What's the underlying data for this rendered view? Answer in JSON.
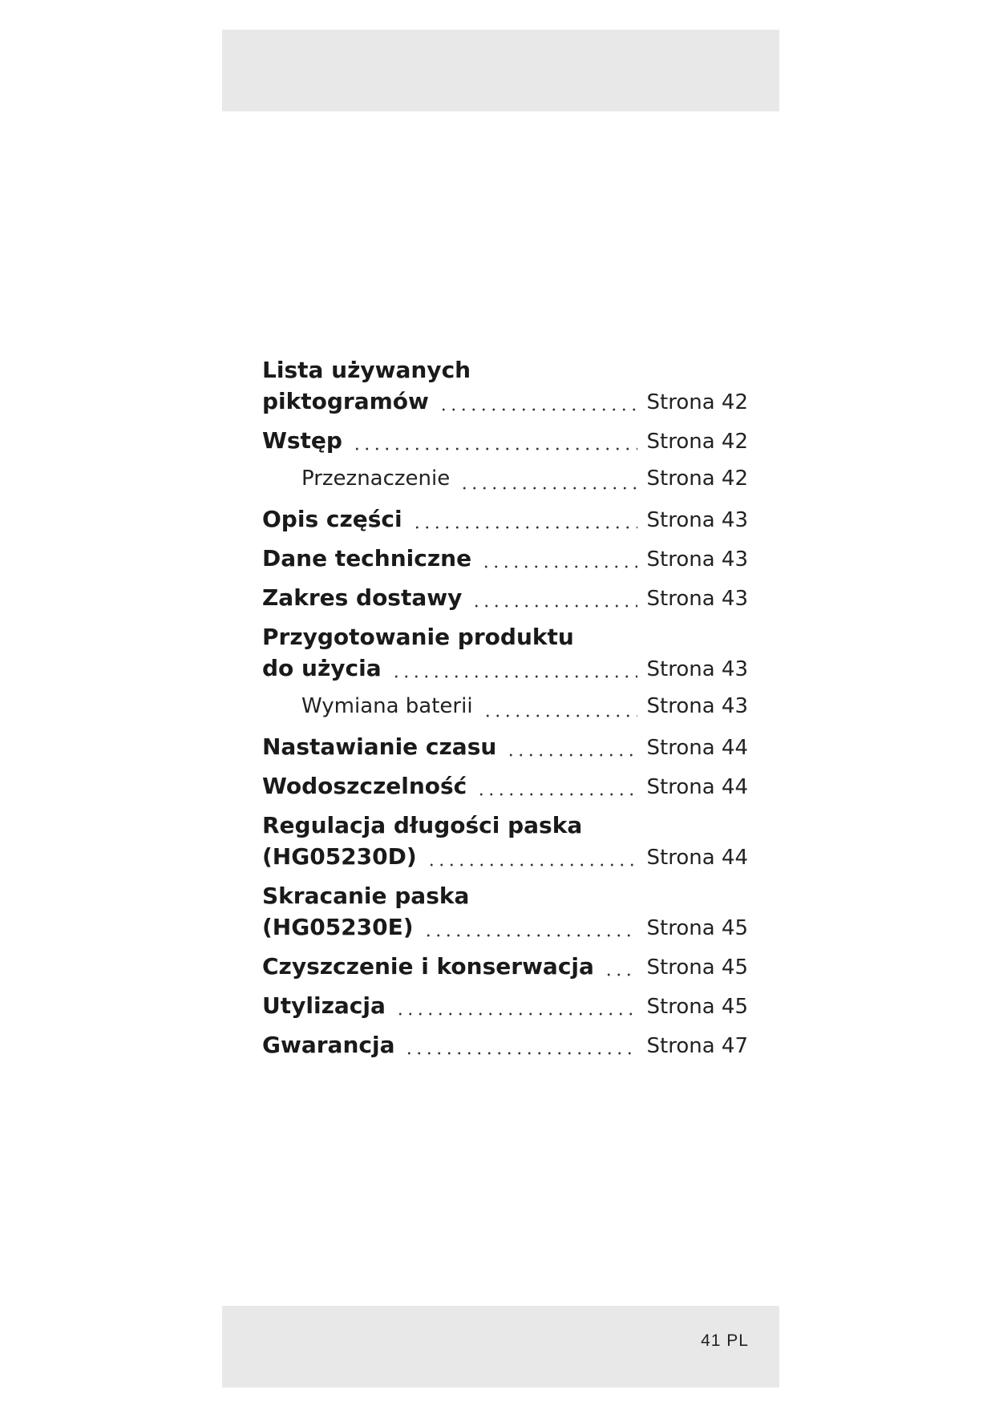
{
  "toc": [
    {
      "lines": [
        "Lista używanych",
        "piktogramów"
      ],
      "page": "Strona 42",
      "level": 1
    },
    {
      "lines": [
        "Wstęp"
      ],
      "page": "Strona 42",
      "level": 1
    },
    {
      "lines": [
        "Przeznaczenie"
      ],
      "page": "Strona 42",
      "level": 2
    },
    {
      "lines": [
        "Opis części"
      ],
      "page": "Strona 43",
      "level": 1
    },
    {
      "lines": [
        "Dane techniczne"
      ],
      "page": "Strona 43",
      "level": 1
    },
    {
      "lines": [
        "Zakres dostawy"
      ],
      "page": "Strona 43",
      "level": 1
    },
    {
      "lines": [
        "Przygotowanie produktu",
        "do użycia"
      ],
      "page": "Strona 43",
      "level": 1
    },
    {
      "lines": [
        "Wymiana baterii"
      ],
      "page": "Strona 43",
      "level": 2
    },
    {
      "lines": [
        "Nastawianie czasu"
      ],
      "page": "Strona 44",
      "level": 1
    },
    {
      "lines": [
        "Wodoszczelność"
      ],
      "page": "Strona 44",
      "level": 1
    },
    {
      "lines": [
        "Regulacja długości paska",
        "(HG05230D)"
      ],
      "page": "Strona 44",
      "level": 1
    },
    {
      "lines": [
        "Skracanie paska",
        "(HG05230E)"
      ],
      "page": "Strona 45",
      "level": 1
    },
    {
      "lines": [
        "Czyszczenie i konserwacja"
      ],
      "page": "Strona 45",
      "level": 1
    },
    {
      "lines": [
        "Utylizacja"
      ],
      "page": "Strona 45",
      "level": 1
    },
    {
      "lines": [
        "Gwarancja"
      ],
      "page": "Strona 47",
      "level": 1
    }
  ],
  "footer": {
    "page_label": "41 PL"
  }
}
